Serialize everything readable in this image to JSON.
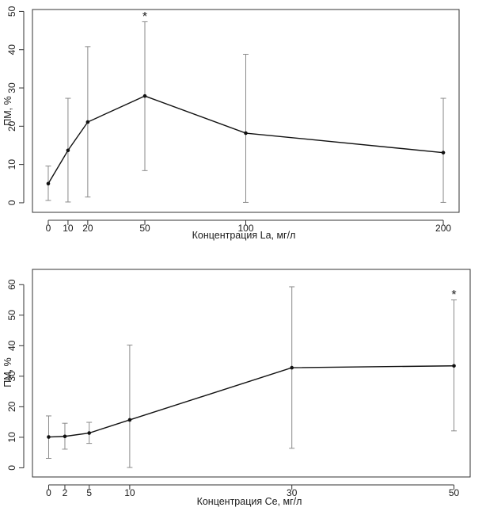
{
  "chart_data": [
    {
      "type": "line",
      "title": "",
      "xlabel": "Концентрация La, мг/л",
      "ylabel": "ПМ, %",
      "xlim": [
        -8,
        208
      ],
      "ylim": [
        -2.5,
        50.5
      ],
      "xticks": [
        0,
        10,
        20,
        50,
        100,
        200
      ],
      "yticks": [
        0,
        10,
        20,
        30,
        40,
        50
      ],
      "grid": false,
      "series": [
        {
          "x": [
            0,
            10,
            20,
            50,
            100,
            200
          ],
          "y": [
            5,
            13.7,
            21.1,
            27.9,
            18.2,
            13.1
          ],
          "err_low": [
            0.6,
            0.2,
            1.5,
            8.4,
            0.1,
            0.1
          ],
          "err_high": [
            9.6,
            27.3,
            40.8,
            47.3,
            38.8,
            27.3
          ]
        }
      ],
      "annotations": [
        {
          "text": "*",
          "x": 50,
          "y": 49.3
        }
      ]
    },
    {
      "type": "line",
      "title": "",
      "xlabel": "Концентрация Ce, мг/л",
      "ylabel": "ПМ, %",
      "xlim": [
        -2,
        52
      ],
      "ylim": [
        -3,
        65
      ],
      "xticks": [
        0,
        2,
        5,
        10,
        30,
        50
      ],
      "yticks": [
        0,
        10,
        20,
        30,
        40,
        50,
        60
      ],
      "grid": false,
      "series": [
        {
          "x": [
            0,
            2,
            5,
            10,
            30,
            50
          ],
          "y": [
            10.1,
            10.3,
            11.4,
            15.7,
            32.8,
            33.4
          ],
          "err_low": [
            3.1,
            6.1,
            8.0,
            0.1,
            6.4,
            12.1
          ],
          "err_high": [
            17.0,
            14.6,
            14.9,
            40.2,
            59.3,
            55.0
          ]
        }
      ],
      "annotations": [
        {
          "text": "*",
          "x": 50,
          "y": 57.5
        }
      ]
    }
  ]
}
